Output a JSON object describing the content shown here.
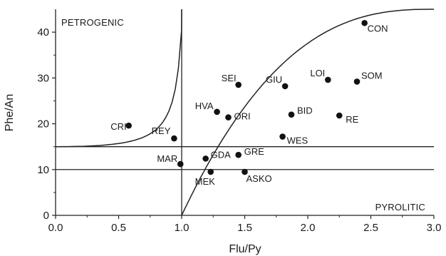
{
  "chart_data": {
    "type": "scatter",
    "xlabel": "Flu/Py",
    "ylabel": "Phe/An",
    "xlim": [
      0,
      3.0
    ],
    "ylim": [
      0,
      45
    ],
    "xticks": [
      "0.0",
      "0.5",
      "1.0",
      "1.5",
      "2.0",
      "2.5",
      "3.0"
    ],
    "yticks": [
      "0",
      "10",
      "20",
      "30",
      "40"
    ],
    "grid": false,
    "regions": [
      "PETROGENIC",
      "PYROLITIC"
    ],
    "reference_lines": {
      "vertical_x": [
        1.0
      ],
      "horizontal_y": [
        10,
        15
      ]
    },
    "points": [
      {
        "label": "CON",
        "x": 2.45,
        "y": 42.0
      },
      {
        "label": "SEI",
        "x": 1.45,
        "y": 28.5
      },
      {
        "label": "GIU",
        "x": 1.82,
        "y": 28.2
      },
      {
        "label": "LOI",
        "x": 2.16,
        "y": 29.6
      },
      {
        "label": "SOM",
        "x": 2.39,
        "y": 29.2
      },
      {
        "label": "HVA",
        "x": 1.28,
        "y": 22.6
      },
      {
        "label": "ORI",
        "x": 1.37,
        "y": 21.4
      },
      {
        "label": "BID",
        "x": 1.87,
        "y": 22.0
      },
      {
        "label": "RE",
        "x": 2.25,
        "y": 21.8
      },
      {
        "label": "CRI",
        "x": 0.58,
        "y": 19.6
      },
      {
        "label": "REY",
        "x": 0.94,
        "y": 16.8
      },
      {
        "label": "WES",
        "x": 1.8,
        "y": 17.2
      },
      {
        "label": "MAR",
        "x": 0.99,
        "y": 11.2
      },
      {
        "label": "GDA",
        "x": 1.19,
        "y": 12.4
      },
      {
        "label": "GRE",
        "x": 1.45,
        "y": 13.2
      },
      {
        "label": "MEK",
        "x": 1.23,
        "y": 9.5
      },
      {
        "label": "ASKO",
        "x": 1.5,
        "y": 9.5
      }
    ]
  }
}
